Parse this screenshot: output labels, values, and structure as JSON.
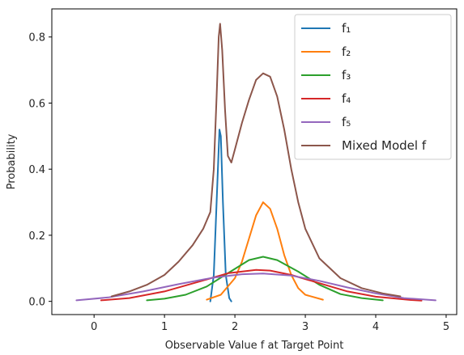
{
  "chart_data": {
    "type": "line",
    "title": "",
    "xlabel": "Observable Value f at Target Point",
    "ylabel": "Probability",
    "xlim": [
      -0.6,
      5.15
    ],
    "ylim": [
      -0.04,
      0.885
    ],
    "xticks": [
      0,
      1,
      2,
      3,
      4,
      5
    ],
    "yticks": [
      0.0,
      0.2,
      0.4,
      0.6,
      0.8
    ],
    "xtick_labels": [
      "0",
      "1",
      "2",
      "3",
      "4",
      "5"
    ],
    "ytick_labels": [
      "0.0",
      "0.2",
      "0.4",
      "0.6",
      "0.8"
    ],
    "grid": false,
    "legend_position": "top-right",
    "series": [
      {
        "name": "f₁",
        "color": "#1f77b4",
        "points": [
          [
            1.65,
            0.0
          ],
          [
            1.7,
            0.08
          ],
          [
            1.74,
            0.3
          ],
          [
            1.78,
            0.52
          ],
          [
            1.8,
            0.5
          ],
          [
            1.83,
            0.3
          ],
          [
            1.87,
            0.08
          ],
          [
            1.92,
            0.01
          ],
          [
            1.95,
            0.0
          ]
        ]
      },
      {
        "name": "f₂",
        "color": "#ff7f0e",
        "points": [
          [
            1.6,
            0.005
          ],
          [
            1.8,
            0.02
          ],
          [
            2.0,
            0.07
          ],
          [
            2.1,
            0.12
          ],
          [
            2.2,
            0.19
          ],
          [
            2.3,
            0.26
          ],
          [
            2.4,
            0.3
          ],
          [
            2.5,
            0.28
          ],
          [
            2.6,
            0.22
          ],
          [
            2.7,
            0.14
          ],
          [
            2.8,
            0.08
          ],
          [
            2.9,
            0.04
          ],
          [
            3.0,
            0.02
          ],
          [
            3.25,
            0.005
          ]
        ]
      },
      {
        "name": "f₃",
        "color": "#2ca02c",
        "points": [
          [
            0.75,
            0.003
          ],
          [
            1.0,
            0.008
          ],
          [
            1.3,
            0.02
          ],
          [
            1.6,
            0.045
          ],
          [
            1.9,
            0.085
          ],
          [
            2.2,
            0.125
          ],
          [
            2.4,
            0.135
          ],
          [
            2.6,
            0.125
          ],
          [
            2.9,
            0.09
          ],
          [
            3.2,
            0.05
          ],
          [
            3.5,
            0.022
          ],
          [
            3.8,
            0.01
          ],
          [
            4.1,
            0.003
          ]
        ]
      },
      {
        "name": "f₄",
        "color": "#d62728",
        "points": [
          [
            0.1,
            0.003
          ],
          [
            0.5,
            0.01
          ],
          [
            1.0,
            0.03
          ],
          [
            1.5,
            0.06
          ],
          [
            1.9,
            0.085
          ],
          [
            2.3,
            0.095
          ],
          [
            2.5,
            0.093
          ],
          [
            2.8,
            0.08
          ],
          [
            3.2,
            0.055
          ],
          [
            3.6,
            0.03
          ],
          [
            4.0,
            0.014
          ],
          [
            4.5,
            0.004
          ],
          [
            4.65,
            0.002
          ]
        ]
      },
      {
        "name": "f₅",
        "color": "#9467bd",
        "points": [
          [
            -0.25,
            0.003
          ],
          [
            0.2,
            0.012
          ],
          [
            0.7,
            0.03
          ],
          [
            1.2,
            0.052
          ],
          [
            1.7,
            0.072
          ],
          [
            2.1,
            0.082
          ],
          [
            2.4,
            0.084
          ],
          [
            2.8,
            0.078
          ],
          [
            3.2,
            0.062
          ],
          [
            3.6,
            0.042
          ],
          [
            4.0,
            0.024
          ],
          [
            4.4,
            0.01
          ],
          [
            4.85,
            0.003
          ]
        ]
      },
      {
        "name": "Mixed Model f",
        "color": "#8c564b",
        "points": [
          [
            0.25,
            0.015
          ],
          [
            0.5,
            0.03
          ],
          [
            0.75,
            0.05
          ],
          [
            1.0,
            0.08
          ],
          [
            1.2,
            0.12
          ],
          [
            1.4,
            0.17
          ],
          [
            1.55,
            0.22
          ],
          [
            1.65,
            0.27
          ],
          [
            1.7,
            0.4
          ],
          [
            1.74,
            0.62
          ],
          [
            1.77,
            0.8
          ],
          [
            1.79,
            0.84
          ],
          [
            1.82,
            0.76
          ],
          [
            1.86,
            0.58
          ],
          [
            1.9,
            0.44
          ],
          [
            1.95,
            0.42
          ],
          [
            2.0,
            0.46
          ],
          [
            2.1,
            0.54
          ],
          [
            2.2,
            0.61
          ],
          [
            2.3,
            0.67
          ],
          [
            2.4,
            0.69
          ],
          [
            2.5,
            0.68
          ],
          [
            2.6,
            0.62
          ],
          [
            2.7,
            0.52
          ],
          [
            2.8,
            0.4
          ],
          [
            2.9,
            0.3
          ],
          [
            3.0,
            0.22
          ],
          [
            3.2,
            0.13
          ],
          [
            3.5,
            0.07
          ],
          [
            3.8,
            0.04
          ],
          [
            4.1,
            0.024
          ],
          [
            4.35,
            0.015
          ]
        ]
      }
    ]
  }
}
